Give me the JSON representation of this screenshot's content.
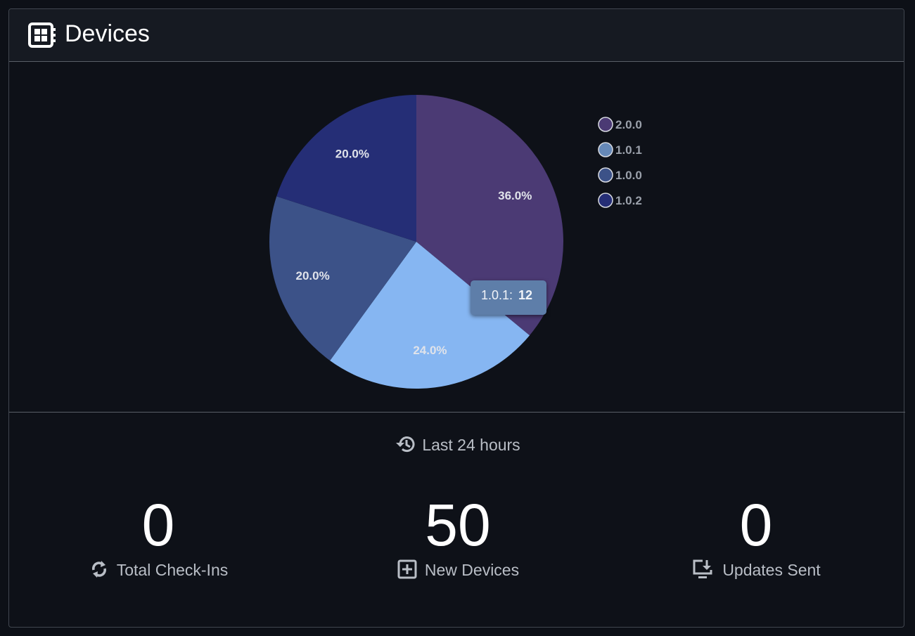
{
  "header": {
    "title": "Devices",
    "icon": "device-board-icon"
  },
  "chart_data": {
    "type": "pie",
    "slices": [
      {
        "label": "2.0.0",
        "value": 36.0,
        "display": "36.0%",
        "color": "#4b3a74",
        "legend_color": "#4b3a74"
      },
      {
        "label": "1.0.1",
        "value": 24.0,
        "display": "24.0%",
        "color": "#86b6f2",
        "legend_color": "#6689b8"
      },
      {
        "label": "1.0.0",
        "value": 20.0,
        "display": "20.0%",
        "color": "#3c5288",
        "legend_color": "#3c5288"
      },
      {
        "label": "1.0.2",
        "value": 20.0,
        "display": "20.0%",
        "color": "#252e76",
        "legend_color": "#252e76"
      }
    ],
    "legend_position": "top-right",
    "tooltip": {
      "label": "1.0.1:",
      "value": "12"
    }
  },
  "summary": {
    "period_label": "Last 24 hours",
    "period_icon": "history-icon",
    "stats": [
      {
        "value": "0",
        "label": "Total Check-Ins",
        "icon": "sync-icon"
      },
      {
        "value": "50",
        "label": "New Devices",
        "icon": "add-box-icon"
      },
      {
        "value": "0",
        "label": "Updates Sent",
        "icon": "install-desktop-icon"
      }
    ]
  },
  "colors": {
    "background": "#0d1017",
    "header_bg": "#161a22",
    "border": "#41464f",
    "tooltip_bg": "#5e7ea9"
  }
}
